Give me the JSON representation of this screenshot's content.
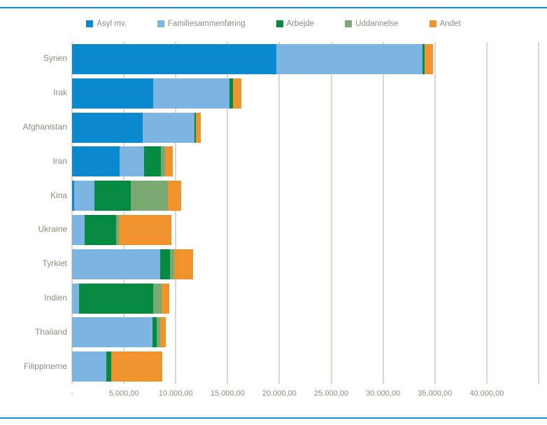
{
  "frame": {
    "border_color": "#1c8ed6",
    "background": "#ffffff"
  },
  "chart_data": {
    "type": "bar",
    "orientation": "horizontal",
    "stacked": true,
    "title": "",
    "xlabel": "",
    "ylabel": "",
    "legend_position": "top",
    "grid": true,
    "gridline_color": "#d8d8d1",
    "text_color": "#8c8c82",
    "categories": [
      "Syrien",
      "Irak",
      "Afghanistan",
      "Iran",
      "Kina",
      "Ukraine",
      "Tyrkiet",
      "Indien",
      "Thailand",
      "Filippinerne"
    ],
    "series": [
      {
        "name": "Asyl mv.",
        "color": "#0a89cf",
        "values": [
          19700,
          7850,
          6800,
          4600,
          200,
          0,
          0,
          0,
          0,
          0
        ]
      },
      {
        "name": "Familiesammenføring",
        "color": "#7cb5e2",
        "values": [
          14100,
          7350,
          5000,
          2350,
          1950,
          1200,
          8500,
          700,
          7750,
          3300
        ]
      },
      {
        "name": "Arbejde",
        "color": "#068a42",
        "values": [
          200,
          350,
          150,
          1650,
          3500,
          3050,
          950,
          7100,
          400,
          500
        ]
      },
      {
        "name": "Uddannelse",
        "color": "#7aaa72",
        "values": [
          0,
          0,
          0,
          400,
          3600,
          250,
          400,
          850,
          350,
          0
        ]
      },
      {
        "name": "Andet",
        "color": "#f0932c",
        "values": [
          800,
          800,
          450,
          700,
          1250,
          5100,
          1800,
          750,
          550,
          4900
        ]
      }
    ],
    "x_axis": {
      "min": 0,
      "max": 45000,
      "gridline_step": 5000,
      "tick_labels": [
        "-",
        "5.000,00",
        "10.000,00",
        "15.000,00",
        "20.000,00",
        "25.000,00",
        "30.000,00",
        "35.000,00",
        "40.000,00"
      ]
    }
  }
}
